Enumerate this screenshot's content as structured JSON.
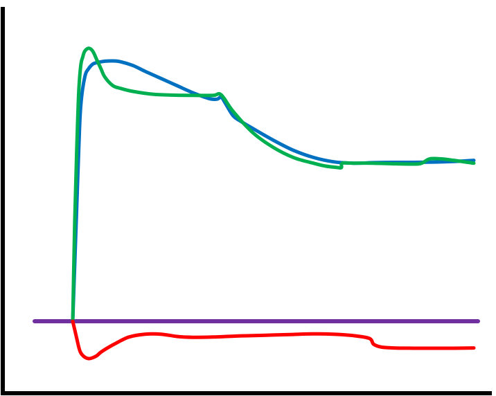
{
  "chart_data": {
    "type": "line",
    "title": "",
    "xlabel": "",
    "ylabel": "",
    "grid": false,
    "legend": "none",
    "xlim": [
      0,
      100
    ],
    "ylim": [
      -25,
      100
    ],
    "series": [
      {
        "color": "#0070C0",
        "x": [
          0,
          0.5,
          1,
          1.5,
          2,
          3,
          4,
          5,
          6,
          8,
          10,
          12,
          15,
          18,
          22,
          26,
          30,
          34,
          36,
          37,
          38,
          40,
          42,
          45,
          50,
          55,
          60,
          65,
          70,
          75,
          80,
          85,
          90,
          95,
          100
        ],
        "y": [
          0,
          20,
          40,
          60,
          75,
          85,
          88,
          89.5,
          90,
          90.5,
          90.6,
          90.3,
          89,
          87,
          84.5,
          82,
          79.5,
          77.5,
          77.3,
          78,
          76,
          71.5,
          69.5,
          67,
          63,
          59.5,
          57,
          55.5,
          55,
          55.2,
          55.3,
          55.3,
          55.4,
          55.6,
          56
        ]
      },
      {
        "color": "#00B050",
        "x": [
          0,
          0.5,
          1,
          1.5,
          2,
          2.5,
          3,
          4,
          5,
          6,
          7,
          8,
          10,
          12,
          15,
          20,
          25,
          30,
          35,
          37,
          40,
          45,
          50,
          55,
          60,
          63,
          66,
          67,
          67.2,
          70,
          75,
          80,
          85,
          87,
          89,
          92,
          95,
          100
        ],
        "y": [
          0,
          35,
          60,
          80,
          89,
          92,
          94,
          95,
          94,
          91,
          88,
          85,
          82,
          81,
          80,
          79,
          78.7,
          78.6,
          78.6,
          78.8,
          73,
          65.5,
          60.5,
          57,
          55,
          54,
          53.5,
          53.5,
          55,
          55,
          55,
          54.8,
          54.7,
          55,
          56.5,
          56.5,
          56,
          55
        ]
      },
      {
        "color": "#FF0000",
        "x": [
          0,
          0.5,
          1,
          1.5,
          2,
          3,
          4,
          5,
          6,
          7,
          9,
          11,
          14,
          18,
          22,
          26,
          30,
          35,
          40,
          45,
          50,
          55,
          60,
          65,
          70,
          74,
          75,
          77,
          80,
          85,
          90,
          95,
          100
        ],
        "y": [
          0,
          -3,
          -6,
          -9,
          -11,
          -12.5,
          -13,
          -12.7,
          -12,
          -10.8,
          -9,
          -7.5,
          -5.5,
          -4.5,
          -4.5,
          -5.3,
          -5.6,
          -5.5,
          -5.2,
          -5,
          -4.8,
          -4.6,
          -4.4,
          -4.5,
          -5,
          -6,
          -8,
          -9,
          -9.3,
          -9.4,
          -9.4,
          -9.4,
          -9.3
        ]
      },
      {
        "color": "#7030A0",
        "x": [
          -10,
          100
        ],
        "y": [
          0,
          0
        ]
      }
    ]
  }
}
